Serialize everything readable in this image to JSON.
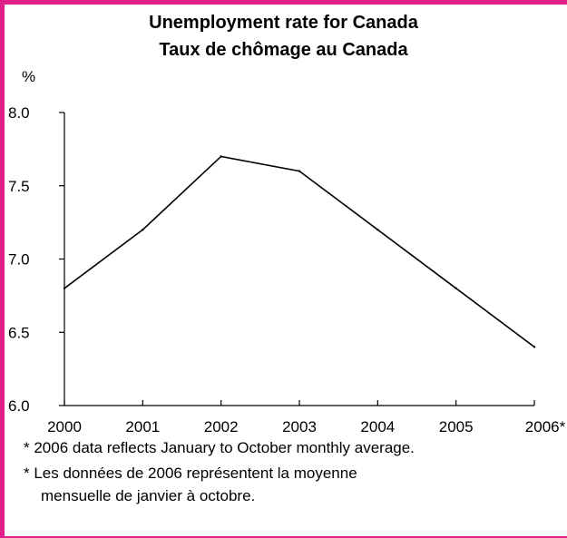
{
  "chart_data": {
    "type": "line",
    "title": "Unemployment rate for Canada",
    "subtitle": "Taux de chômage au Canada",
    "ylabel": "%",
    "xlabel": "",
    "categories": [
      "2000",
      "2001",
      "2002",
      "2003",
      "2004",
      "2005",
      "2006*"
    ],
    "series": [
      {
        "values": [
          6.8,
          7.2,
          7.7,
          7.6,
          7.2,
          6.8,
          6.4
        ]
      }
    ],
    "ylim": [
      6.0,
      8.0
    ],
    "yticks": [
      "6.0",
      "6.5",
      "7.0",
      "7.5",
      "8.0"
    ],
    "grid": false,
    "legend": "none",
    "line_color": "#000000",
    "frame_color": "#e01f8a"
  },
  "notes": {
    "english": "* 2006 data reflects January to October monthly average.",
    "french_line1": "* Les données de 2006 représentent la moyenne",
    "french_line2": "mensuelle de janvier à octobre."
  }
}
